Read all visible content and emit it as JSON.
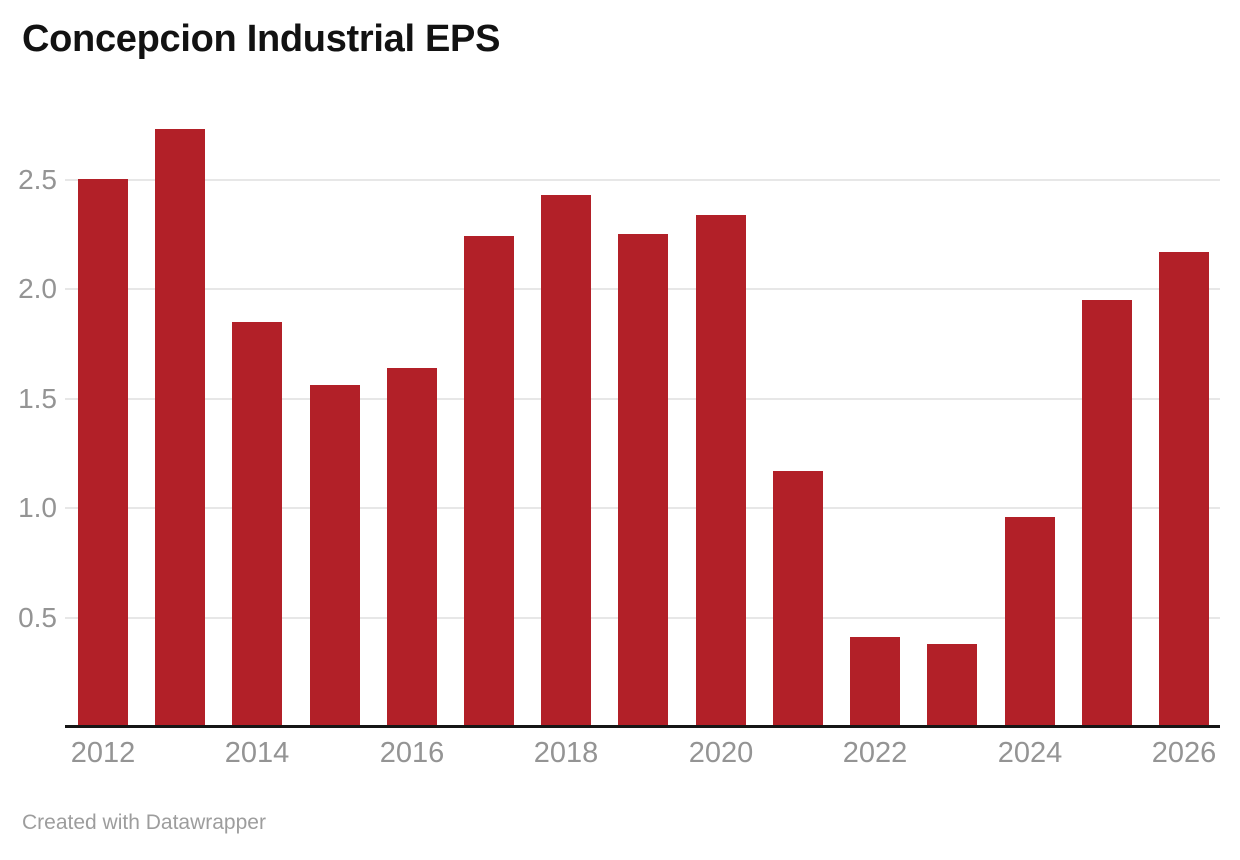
{
  "header": {
    "title": "Concepcion Industrial EPS"
  },
  "footer": {
    "credit": "Created with Datawrapper"
  },
  "chart_data": {
    "type": "bar",
    "title": "Concepcion Industrial EPS",
    "series_name": "EPS",
    "categories": [
      "2012",
      "2013",
      "2014",
      "2015",
      "2016",
      "2017",
      "2018",
      "2019",
      "2020",
      "2021",
      "2022",
      "2023",
      "2024",
      "2025",
      "2026"
    ],
    "values": [
      2.5,
      2.73,
      1.85,
      1.56,
      1.64,
      2.24,
      2.43,
      2.25,
      2.34,
      1.17,
      0.41,
      0.38,
      0.96,
      1.95,
      2.17
    ],
    "xlabel": "",
    "ylabel": "",
    "ylim": [
      0,
      2.85
    ],
    "y_tick_values": [
      0.5,
      1.0,
      1.5,
      2.0,
      2.5
    ],
    "y_tick_labels": [
      "0.5",
      "1.0",
      "1.5",
      "2.0",
      "2.5"
    ],
    "x_tick_labels": [
      "2012",
      "2014",
      "2016",
      "2018",
      "2020",
      "2022",
      "2024",
      "2026"
    ],
    "grid": "horizontal-only",
    "legend": "none",
    "bar_color": "#b22028"
  },
  "colors": {
    "background": "#ffffff",
    "bar": "#b22028",
    "gridline": "#e7e7e7",
    "axis_line": "#161616",
    "tick_label": "#949494",
    "title": "#121212",
    "credit": "#9d9d9d"
  }
}
